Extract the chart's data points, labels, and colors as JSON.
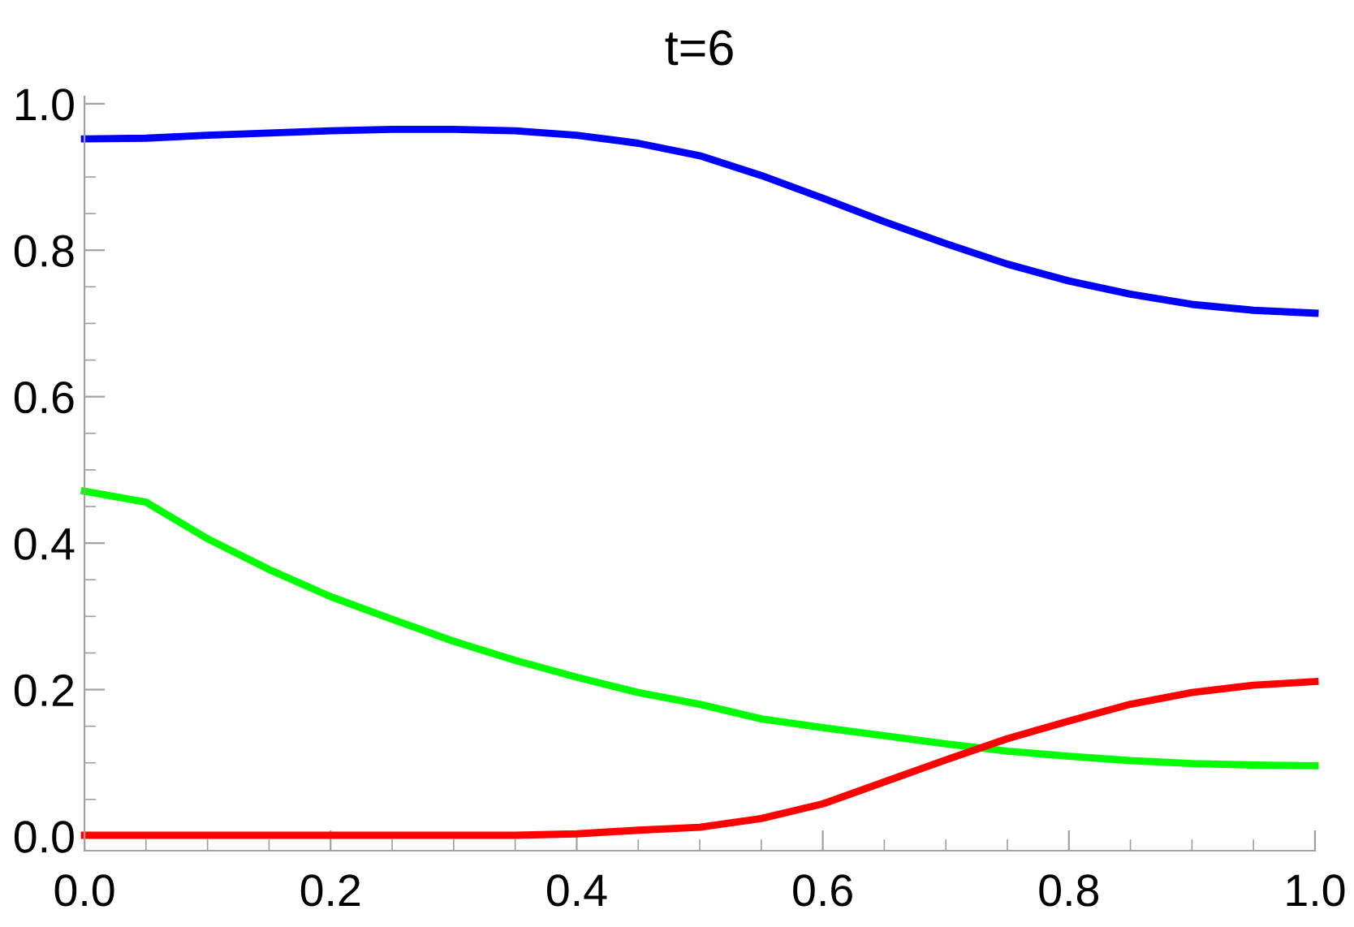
{
  "chart_data": {
    "type": "line",
    "title": "t=6",
    "x": [
      0,
      0.05,
      0.1,
      0.15,
      0.2,
      0.25,
      0.3,
      0.35,
      0.4,
      0.45,
      0.5,
      0.55,
      0.6,
      0.65,
      0.7,
      0.75,
      0.8,
      0.85,
      0.9,
      0.95,
      1
    ],
    "series": [
      {
        "color": "#0000ff",
        "values": [
          0.952,
          0.953,
          0.957,
          0.96,
          0.963,
          0.965,
          0.965,
          0.963,
          0.957,
          0.946,
          0.929,
          0.902,
          0.871,
          0.839,
          0.809,
          0.781,
          0.758,
          0.74,
          0.726,
          0.718,
          0.714
        ]
      },
      {
        "color": "#00ff00",
        "values": [
          0.471,
          0.456,
          0.406,
          0.364,
          0.327,
          0.296,
          0.266,
          0.24,
          0.217,
          0.196,
          0.18,
          0.16,
          0.148,
          0.137,
          0.126,
          0.116,
          0.109,
          0.103,
          0.099,
          0.097,
          0.096
        ]
      },
      {
        "color": "#ff0000",
        "values": [
          0.001,
          0.001,
          0.001,
          0.001,
          0.001,
          0.001,
          0.001,
          0.001,
          0.003,
          0.008,
          0.012,
          0.024,
          0.044,
          0.074,
          0.104,
          0.133,
          0.157,
          0.18,
          0.196,
          0.206,
          0.211
        ]
      }
    ],
    "xlim": [
      0,
      1
    ],
    "ylim": [
      -0.02,
      1.01
    ],
    "xticks": [
      {
        "value": 0,
        "label": "0.0"
      },
      {
        "value": 0.2,
        "label": "0.2"
      },
      {
        "value": 0.4,
        "label": "0.4"
      },
      {
        "value": 0.6,
        "label": "0.6"
      },
      {
        "value": 0.8,
        "label": "0.8"
      },
      {
        "value": 1,
        "label": "1.0"
      },
      {
        "value": 0.05,
        "label": null
      },
      {
        "value": 0.1,
        "label": null
      },
      {
        "value": 0.15,
        "label": null
      },
      {
        "value": 0.25,
        "label": null
      },
      {
        "value": 0.3,
        "label": null
      },
      {
        "value": 0.35,
        "label": null
      },
      {
        "value": 0.45,
        "label": null
      },
      {
        "value": 0.5,
        "label": null
      },
      {
        "value": 0.55,
        "label": null
      },
      {
        "value": 0.65,
        "label": null
      },
      {
        "value": 0.7,
        "label": null
      },
      {
        "value": 0.75,
        "label": null
      },
      {
        "value": 0.85,
        "label": null
      },
      {
        "value": 0.9,
        "label": null
      },
      {
        "value": 0.95,
        "label": null
      }
    ],
    "yticks": [
      {
        "value": 0,
        "label": "0.0"
      },
      {
        "value": 0.2,
        "label": "0.2"
      },
      {
        "value": 0.4,
        "label": "0.4"
      },
      {
        "value": 0.6,
        "label": "0.6"
      },
      {
        "value": 0.8,
        "label": "0.8"
      },
      {
        "value": 1,
        "label": "1.0"
      },
      {
        "value": 0.05,
        "label": null
      },
      {
        "value": 0.1,
        "label": null
      },
      {
        "value": 0.15,
        "label": null
      },
      {
        "value": 0.25,
        "label": null
      },
      {
        "value": 0.3,
        "label": null
      },
      {
        "value": 0.35,
        "label": null
      },
      {
        "value": 0.45,
        "label": null
      },
      {
        "value": 0.5,
        "label": null
      },
      {
        "value": 0.55,
        "label": null
      },
      {
        "value": 0.65,
        "label": null
      },
      {
        "value": 0.7,
        "label": null
      },
      {
        "value": 0.75,
        "label": null
      },
      {
        "value": 0.85,
        "label": null
      },
      {
        "value": 0.9,
        "label": null
      },
      {
        "value": 0.95,
        "label": null
      }
    ],
    "grid": false,
    "legend": false,
    "marker": "none",
    "line_style": "solid"
  }
}
